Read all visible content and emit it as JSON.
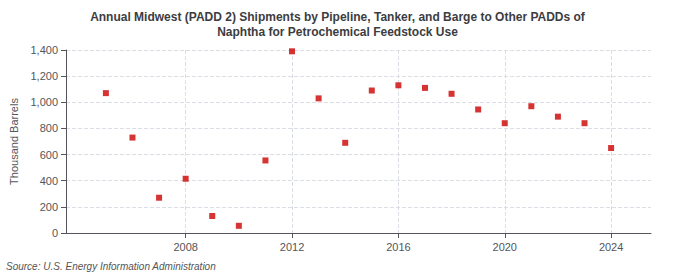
{
  "chart_data": {
    "type": "scatter",
    "title": "Annual Midwest (PADD 2) Shipments by Pipeline, Tanker, and Barge to Other PADDs of\nNaphtha for Petrochemical Feedstock Use",
    "ylabel": "Thousand Barrels",
    "annotations": [
      "Source: U.S. Energy Information Administration"
    ],
    "x": [
      2005,
      2006,
      2007,
      2008,
      2009,
      2010,
      2011,
      2012,
      2013,
      2014,
      2015,
      2016,
      2017,
      2018,
      2019,
      2020,
      2021,
      2022,
      2023,
      2024
    ],
    "values": [
      1070,
      730,
      270,
      415,
      130,
      55,
      555,
      1390,
      1030,
      690,
      1090,
      1130,
      1110,
      1065,
      945,
      840,
      970,
      890,
      840,
      650
    ],
    "color": "#cc0000",
    "marker": "square",
    "xlim": [
      2003.5,
      2025.5
    ],
    "xticks": [
      2008,
      2012,
      2016,
      2020,
      2024
    ],
    "ylim": [
      0,
      1400
    ],
    "yticks": [
      0,
      200,
      400,
      600,
      800,
      {
        "value": 1000,
        "label": "1,000"
      },
      {
        "value": 1200,
        "label": "1,200"
      },
      {
        "value": 1400,
        "label": "1,400"
      }
    ],
    "grid": true
  }
}
